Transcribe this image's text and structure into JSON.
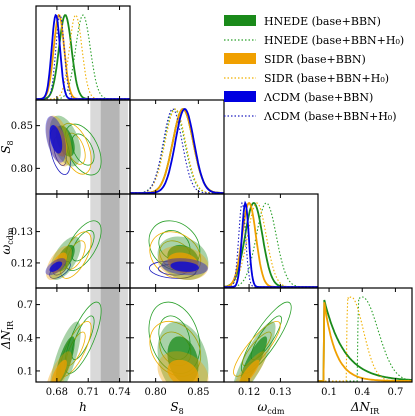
{
  "chart_data": {
    "type": "corner",
    "parameters": [
      {
        "name": "h",
        "label": "h",
        "range": [
          0.66,
          0.75
        ],
        "ticks": [
          0.68,
          0.71,
          0.74
        ],
        "tick_labels": [
          "0.68",
          "0.71",
          "0.74"
        ]
      },
      {
        "name": "S8",
        "label": "S₈",
        "range": [
          0.77,
          0.88
        ],
        "ticks": [
          0.8,
          0.85
        ],
        "tick_labels": [
          "0.80",
          "0.85"
        ],
        "tick_values_on_y": [
          0.8,
          0.85
        ],
        "tick_labels_on_y": [
          "0.80",
          "0.85"
        ]
      },
      {
        "name": "omega_cdm",
        "label": "ω_cdm",
        "range": [
          0.112,
          0.142
        ],
        "ticks": [
          0.12,
          0.13
        ],
        "tick_labels": [
          "0.12",
          "0.13"
        ],
        "tick_values_on_y": [
          0.12,
          0.13
        ],
        "tick_labels_on_y": [
          "0.12",
          "0.13"
        ]
      },
      {
        "name": "DeltaN_IR",
        "label": "ΔN_IR",
        "range": [
          0.0,
          0.85
        ],
        "ticks": [
          0.1,
          0.4,
          0.7
        ],
        "tick_labels": [
          "0.1",
          "0.4",
          "0.7"
        ],
        "tick_values_on_y": [
          0.1,
          0.4,
          0.7
        ],
        "tick_labels_on_y": [
          "0.1",
          "0.4",
          "0.7"
        ]
      }
    ],
    "series": [
      {
        "name": "HNEDE (base+BBN)",
        "color": "#1a8a1a",
        "style": "solid",
        "mean": {
          "h": 0.688,
          "S8": 0.832,
          "omega_cdm": 0.1215,
          "DeltaN_IR": 0.2
        },
        "sigma": {
          "h": 0.006,
          "S8": 0.012,
          "omega_cdm": 0.0028,
          "DeltaN_IR": 0.14
        }
      },
      {
        "name": "HNEDE (base+BBN+H₀)",
        "color": "#2aa02a",
        "style": "dotted",
        "mean": {
          "h": 0.705,
          "S8": 0.822,
          "omega_cdm": 0.1255,
          "DeltaN_IR": 0.4
        },
        "sigma": {
          "h": 0.007,
          "S8": 0.012,
          "omega_cdm": 0.0032,
          "DeltaN_IR": 0.13
        }
      },
      {
        "name": "SIDR (base+BBN)",
        "color": "#f0a000",
        "style": "solid",
        "mean": {
          "h": 0.682,
          "S8": 0.832,
          "omega_cdm": 0.12,
          "DeltaN_IR": 0.08
        },
        "sigma": {
          "h": 0.005,
          "S8": 0.012,
          "omega_cdm": 0.0022,
          "DeltaN_IR": 0.08
        }
      },
      {
        "name": "SIDR (base+BBN+H₀)",
        "color": "#f0b000",
        "style": "dotted",
        "mean": {
          "h": 0.698,
          "S8": 0.823,
          "omega_cdm": 0.1225,
          "DeltaN_IR": 0.3
        },
        "sigma": {
          "h": 0.006,
          "S8": 0.012,
          "omega_cdm": 0.003,
          "DeltaN_IR": 0.1
        }
      },
      {
        "name": "ΛCDM (base+BBN)",
        "color": "#0000e0",
        "style": "solid",
        "mean": {
          "h": 0.679,
          "S8": 0.834,
          "omega_cdm": 0.1188,
          "DeltaN_IR": 0.0
        },
        "sigma": {
          "h": 0.004,
          "S8": 0.011,
          "omega_cdm": 0.0011,
          "DeltaN_IR": 0.0
        }
      },
      {
        "name": "ΛCDM (base+BBN+H₀)",
        "color": "#2020c0",
        "style": "dotted",
        "mean": {
          "h": 0.683,
          "S8": 0.82,
          "omega_cdm": 0.1178,
          "DeltaN_IR": 0.0
        },
        "sigma": {
          "h": 0.004,
          "S8": 0.011,
          "omega_cdm": 0.0011,
          "DeltaN_IR": 0.0
        }
      }
    ],
    "h0_prior_bands": {
      "outer": [
        0.712,
        0.748
      ],
      "inner": [
        0.722,
        0.74
      ]
    }
  }
}
